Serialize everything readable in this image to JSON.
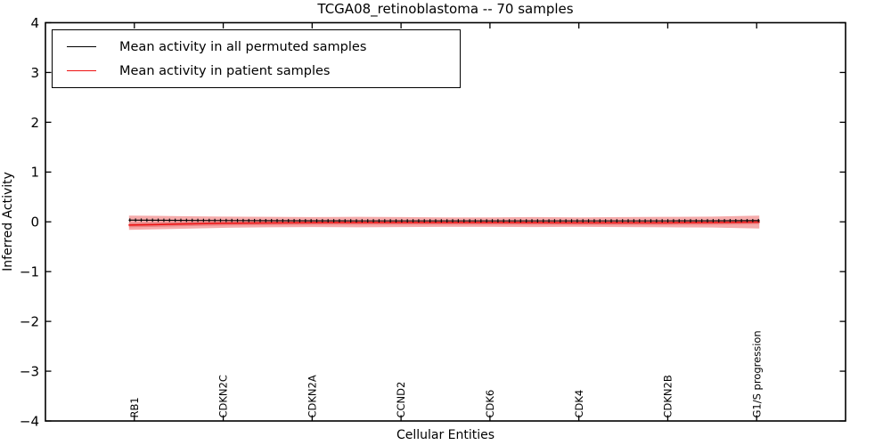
{
  "chart_data": {
    "type": "line",
    "title": "TCGA08_retinoblastoma -- 70 samples",
    "xlabel": "Cellular Entities",
    "ylabel": "Inferred Activity",
    "xlim": [
      0,
      9
    ],
    "ylim": [
      -4,
      4
    ],
    "grid": false,
    "legend_position": "upper left",
    "yticks": {
      "values": [
        4,
        3,
        2,
        1,
        0,
        -1,
        -2,
        -3,
        -4
      ],
      "labels": [
        "4",
        "3",
        "2",
        "1",
        "0",
        "−1",
        "−2",
        "−3",
        "−4"
      ]
    },
    "xticks": {
      "positions": [
        1,
        2,
        3,
        4,
        5,
        6,
        7,
        8
      ],
      "categories": [
        "RB1",
        "CDKN2C",
        "CDKN2A",
        "CCND2",
        "CDK6",
        "CDK4",
        "CDKN2B",
        "G1/S progression"
      ]
    },
    "series": [
      {
        "name": "Mean activity in all permuted samples",
        "color": "#000000",
        "marker": "vertical-dash",
        "marker_count": 112,
        "x": [
          0.94,
          1.25,
          1.5,
          2.0,
          2.5,
          3.0,
          3.5,
          4.0,
          4.5,
          5.0,
          5.5,
          6.0,
          6.5,
          7.0,
          7.5,
          8.03
        ],
        "values": [
          0.035,
          0.032,
          0.03,
          0.027,
          0.024,
          0.022,
          0.02,
          0.02,
          0.02,
          0.02,
          0.02,
          0.02,
          0.02,
          0.02,
          0.022,
          0.025
        ]
      },
      {
        "name": "Mean activity in patient samples",
        "color": "#ee1111",
        "marker": "none",
        "x": [
          0.94,
          1.25,
          1.5,
          2.0,
          2.5,
          3.0,
          3.5,
          4.0,
          4.5,
          5.0,
          5.5,
          6.0,
          6.5,
          7.0,
          7.5,
          8.03
        ],
        "values": [
          -0.065,
          -0.055,
          -0.045,
          -0.03,
          -0.022,
          -0.018,
          -0.015,
          -0.015,
          -0.015,
          -0.015,
          -0.018,
          -0.02,
          -0.02,
          -0.02,
          -0.015,
          -0.005
        ]
      }
    ],
    "band": {
      "label": "outer shaded band around patient mean",
      "color": "#F5ABAB",
      "x": [
        0.94,
        1.25,
        1.5,
        2.0,
        2.5,
        3.0,
        3.5,
        4.0,
        4.5,
        5.0,
        5.5,
        6.0,
        6.5,
        7.0,
        7.5,
        8.03
      ],
      "upper": [
        0.125,
        0.12,
        0.115,
        0.105,
        0.1,
        0.095,
        0.1,
        0.095,
        0.09,
        0.09,
        0.095,
        0.09,
        0.095,
        0.1,
        0.105,
        0.125
      ],
      "lower": [
        -0.16,
        -0.15,
        -0.14,
        -0.12,
        -0.11,
        -0.105,
        -0.11,
        -0.105,
        -0.1,
        -0.1,
        -0.105,
        -0.1,
        -0.105,
        -0.11,
        -0.115,
        -0.135
      ]
    },
    "inner_band": {
      "label": "inner darker band around patient mean",
      "color": "#EC8383",
      "x": [
        0.94,
        1.25,
        1.5,
        2.0,
        2.5,
        3.0,
        3.5,
        4.0,
        4.5,
        5.0,
        5.5,
        6.0,
        6.5,
        7.0,
        7.5,
        8.03
      ],
      "upper": [
        -0.02,
        -0.01,
        0.0,
        0.015,
        0.022,
        0.026,
        0.028,
        0.028,
        0.028,
        0.028,
        0.026,
        0.024,
        0.024,
        0.024,
        0.028,
        0.04
      ],
      "lower": [
        -0.11,
        -0.1,
        -0.09,
        -0.073,
        -0.065,
        -0.06,
        -0.058,
        -0.058,
        -0.058,
        -0.058,
        -0.06,
        -0.062,
        -0.062,
        -0.062,
        -0.058,
        -0.048
      ]
    }
  }
}
